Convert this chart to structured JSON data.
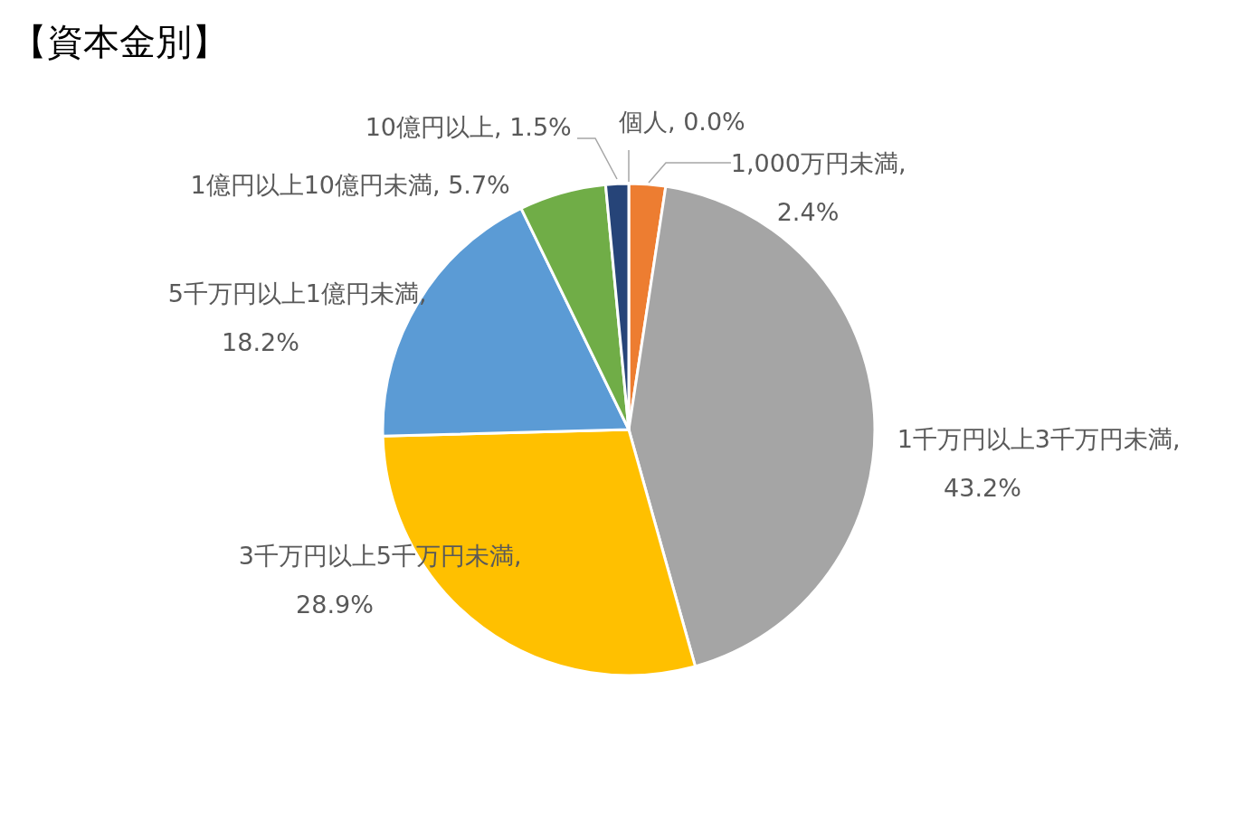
{
  "chart_data": {
    "type": "pie",
    "title": "【資本金別】",
    "categories": [
      "個人",
      "1,000万円未満",
      "1千万円以上3千万円未満",
      "3千万円以上5千万円未満",
      "5千万円以上1億円未満",
      "1億円以上10億円未満",
      "10億円以上"
    ],
    "values": [
      0.0,
      2.4,
      43.2,
      28.9,
      18.2,
      5.7,
      1.5
    ],
    "colors": [
      "#4472c4",
      "#ed7d31",
      "#a5a5a5",
      "#ffc000",
      "#5b9bd5",
      "#70ad47",
      "#264478"
    ],
    "value_labels": [
      ", 0.0%",
      ", 2.4%",
      ", 43.2%",
      ", 28.9%",
      ", 18.2%",
      ", 5.7%",
      ", 1.5%"
    ]
  }
}
